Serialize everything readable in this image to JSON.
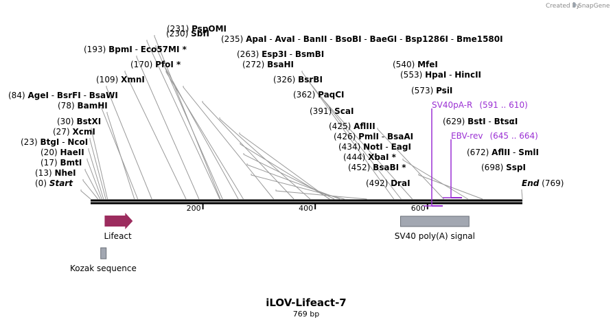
{
  "map": {
    "name": "iLOV-Lifeact-7",
    "length_label": "769 bp",
    "total_bp": 769,
    "credit": "Created by",
    "brand": "SnapGene"
  },
  "ticks": [
    {
      "bp": 200,
      "label": "200"
    },
    {
      "bp": 400,
      "label": "400"
    },
    {
      "bp": 600,
      "label": "600"
    }
  ],
  "sites": [
    {
      "bp": 0,
      "names": [
        "Start"
      ],
      "pos": "(0)",
      "italic": true
    },
    {
      "bp": 13,
      "names": [
        "NheI"
      ],
      "pos": "(13)"
    },
    {
      "bp": 17,
      "names": [
        "BmtI"
      ],
      "pos": "(17)"
    },
    {
      "bp": 20,
      "names": [
        "HaeII"
      ],
      "pos": "(20)"
    },
    {
      "bp": 23,
      "names": [
        "BtgI",
        "NcoI"
      ],
      "pos": "(23)"
    },
    {
      "bp": 27,
      "names": [
        "XcmI"
      ],
      "pos": "(27)"
    },
    {
      "bp": 30,
      "names": [
        "BstXI"
      ],
      "pos": "(30)"
    },
    {
      "bp": 78,
      "names": [
        "BamHI"
      ],
      "pos": "(78)"
    },
    {
      "bp": 84,
      "names": [
        "AgeI",
        "BsrFI",
        "BsaWI"
      ],
      "pos": "(84)"
    },
    {
      "bp": 109,
      "names": [
        "XmnI"
      ],
      "pos": "(109)"
    },
    {
      "bp": 170,
      "names": [
        "PfoI *"
      ],
      "pos": "(170)"
    },
    {
      "bp": 193,
      "names": [
        "BpmI",
        "Eco57MI *"
      ],
      "pos": "(193)"
    },
    {
      "bp": 230,
      "names": [
        "SbfI"
      ],
      "pos": "(230)"
    },
    {
      "bp": 231,
      "names": [
        "PspOMI"
      ],
      "pos": "(231)"
    },
    {
      "bp": 235,
      "names": [
        "ApaI",
        "AvaI",
        "BanII",
        "BsoBI",
        "BaeGI",
        "Bsp1286I",
        "Bme1580I"
      ],
      "pos": "(235)"
    },
    {
      "bp": 263,
      "names": [
        "Esp3I",
        "BsmBI"
      ],
      "pos": "(263)"
    },
    {
      "bp": 272,
      "names": [
        "BsaHI"
      ],
      "pos": "(272)"
    },
    {
      "bp": 326,
      "names": [
        "BsrBI"
      ],
      "pos": "(326)"
    },
    {
      "bp": 362,
      "names": [
        "PaqCI"
      ],
      "pos": "(362)"
    },
    {
      "bp": 391,
      "names": [
        "ScaI"
      ],
      "pos": "(391)"
    },
    {
      "bp": 425,
      "names": [
        "AflIII"
      ],
      "pos": "(425)"
    },
    {
      "bp": 426,
      "names": [
        "PmlI",
        "BsaAI"
      ],
      "pos": "(426)"
    },
    {
      "bp": 434,
      "names": [
        "NotI",
        "EagI"
      ],
      "pos": "(434)"
    },
    {
      "bp": 444,
      "names": [
        "XbaI *"
      ],
      "pos": "(444)"
    },
    {
      "bp": 452,
      "names": [
        "BsaBI *"
      ],
      "pos": "(452)"
    },
    {
      "bp": 492,
      "names": [
        "DraI"
      ],
      "pos": "(492)"
    },
    {
      "bp": 540,
      "names": [
        "MfeI"
      ],
      "pos": "(540)"
    },
    {
      "bp": 553,
      "names": [
        "HpaI",
        "HincII"
      ],
      "pos": "(553)"
    },
    {
      "bp": 573,
      "names": [
        "PsiI"
      ],
      "pos": "(573)"
    },
    {
      "bp": 629,
      "names": [
        "BstI",
        "BtsαI"
      ],
      "pos": "(629)"
    },
    {
      "bp": 672,
      "names": [
        "AflII",
        "SmlI"
      ],
      "pos": "(672)"
    },
    {
      "bp": 698,
      "names": [
        "SspI"
      ],
      "pos": "(698)"
    },
    {
      "bp": 769,
      "names": [
        "End"
      ],
      "pos": "(769)",
      "italic": true
    }
  ],
  "primers": [
    {
      "name": "SV40pA-R",
      "range": "(591 .. 610)",
      "start": 591,
      "end": 610
    },
    {
      "name": "EBV-rev",
      "range": "(645 .. 664)",
      "start": 645,
      "end": 664
    }
  ],
  "features": [
    {
      "name": "Lifeact",
      "start": 25,
      "end": 75,
      "kind": "arrow"
    },
    {
      "name": "SV40 poly(A) signal",
      "start": 552,
      "end": 674,
      "kind": "box"
    },
    {
      "name": "Kozak sequence",
      "start": 18,
      "end": 27,
      "kind": "box"
    }
  ],
  "colors": {
    "backbone": "#000000",
    "primer": "#9a2fd3",
    "lifeact": "#9c2c5e",
    "grey_feature": "#a2a7b1",
    "site_line": "#999999"
  }
}
